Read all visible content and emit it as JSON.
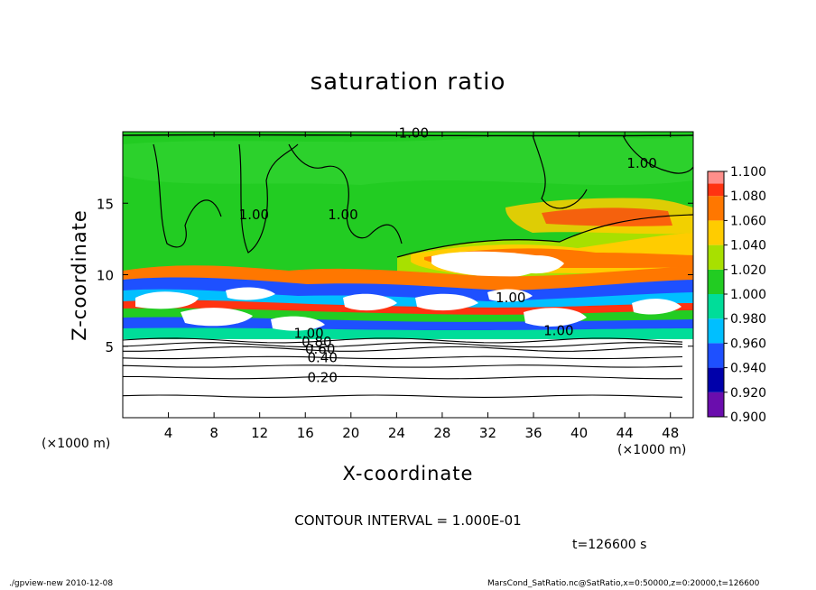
{
  "chart_data": {
    "type": "heatmap",
    "title": "saturation ratio",
    "xlabel": "X-coordinate",
    "ylabel": "Z-coordinate",
    "x_unit_left": "(×1000 m)",
    "x_unit_right": "(×1000 m)",
    "xlim": [
      0,
      50
    ],
    "ylim": [
      0,
      20
    ],
    "x_ticks": [
      4,
      8,
      12,
      16,
      20,
      24,
      28,
      32,
      36,
      40,
      44,
      48
    ],
    "y_ticks": [
      5,
      10,
      15
    ],
    "colorbar": {
      "levels": [
        0.9,
        0.92,
        0.94,
        0.96,
        0.98,
        1.0,
        1.02,
        1.04,
        1.06,
        1.08,
        1.1
      ],
      "labels": [
        "0.900",
        "0.920",
        "0.940",
        "0.960",
        "0.980",
        "1.000",
        "1.020",
        "1.040",
        "1.060",
        "1.080",
        "1.100"
      ],
      "colors": [
        "#6a0dad",
        "#0000aa",
        "#1e50ff",
        "#00bfff",
        "#00dd99",
        "#22cc22",
        "#a8e000",
        "#ffcc00",
        "#ff7700",
        "#ff3311",
        "#ff9999"
      ]
    },
    "contour_labels": [
      {
        "text": "1.00",
        "x": 25.5,
        "z": 19.9
      },
      {
        "text": "1.00",
        "x": 45.5,
        "z": 17.8
      },
      {
        "text": "1.00",
        "x": 11.5,
        "z": 14.2
      },
      {
        "text": "1.00",
        "x": 19.3,
        "z": 14.2
      },
      {
        "text": "1.00",
        "x": 34.0,
        "z": 8.4
      },
      {
        "text": "1.00",
        "x": 38.2,
        "z": 6.1
      },
      {
        "text": "1.00",
        "x": 16.3,
        "z": 5.9
      },
      {
        "text": "0.80",
        "x": 17.0,
        "z": 5.3
      },
      {
        "text": "0.60",
        "x": 17.3,
        "z": 4.8
      },
      {
        "text": "0.40",
        "x": 17.5,
        "z": 4.2
      },
      {
        "text": "0.20",
        "x": 17.5,
        "z": 2.8
      }
    ],
    "unsaturated_contours_z": [
      1.5,
      2.8,
      3.6,
      4.2,
      4.8,
      5.1,
      5.4
    ]
  },
  "contour_interval": "CONTOUR INTERVAL = 1.000E-01",
  "time_label": "t=126600 s",
  "footer_left": "./gpview-new   2010-12-08",
  "footer_right": "MarsCond_SatRatio.nc@SatRatio,x=0:50000,z=0:20000,t=126600"
}
